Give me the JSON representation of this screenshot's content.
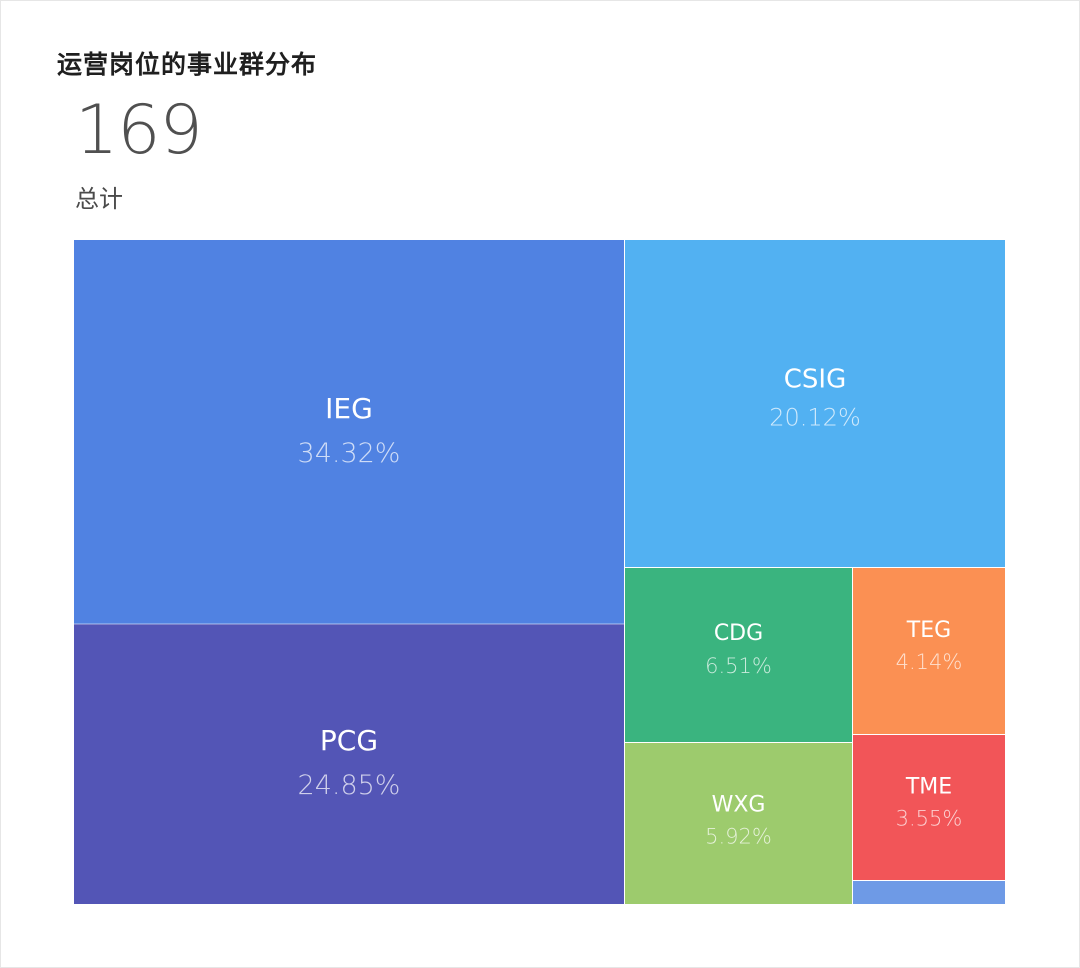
{
  "title": "运营岗位的事业群分布",
  "total": {
    "value": "169",
    "label": "总计"
  },
  "chart_data": {
    "type": "treemap",
    "total": 169,
    "items": [
      {
        "name": "IEG",
        "percent": 34.32,
        "percent_label": "34.32%",
        "color": "#5082e2"
      },
      {
        "name": "PCG",
        "percent": 24.85,
        "percent_label": "24.85%",
        "color": "#5355b6"
      },
      {
        "name": "CSIG",
        "percent": 20.12,
        "percent_label": "20.12%",
        "color": "#52b1f2"
      },
      {
        "name": "CDG",
        "percent": 6.51,
        "percent_label": "6.51%",
        "color": "#3ab47f"
      },
      {
        "name": "WXG",
        "percent": 5.92,
        "percent_label": "5.92%",
        "color": "#9dcb6d"
      },
      {
        "name": "TEG",
        "percent": 4.14,
        "percent_label": "4.14%",
        "color": "#fb9053"
      },
      {
        "name": "TME",
        "percent": 3.55,
        "percent_label": "3.55%",
        "color": "#f25558"
      },
      {
        "name": "",
        "percent": 0.59,
        "percent_label": "",
        "color": "#6e9ae6"
      }
    ]
  }
}
